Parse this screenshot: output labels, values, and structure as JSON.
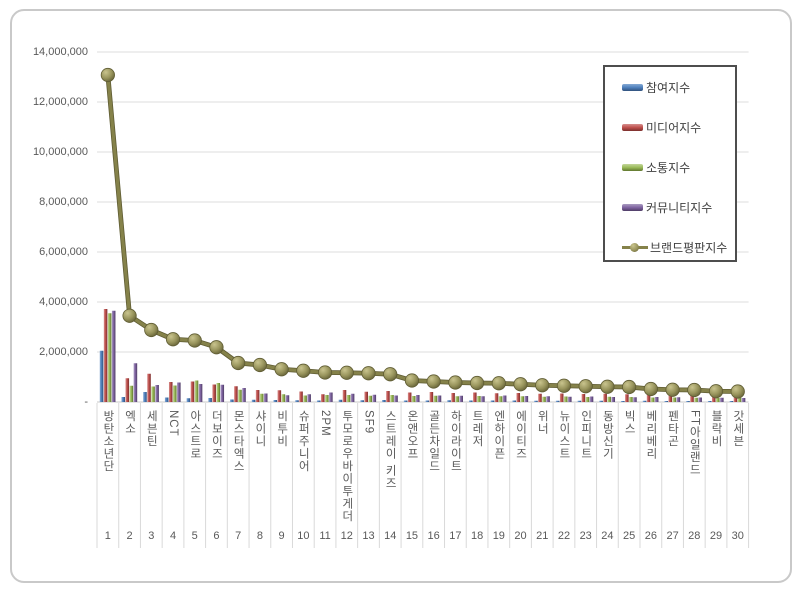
{
  "chart_data": {
    "type": "bar",
    "subtype": "grouped-bars-with-line",
    "title": "",
    "categories": [
      "방탄소년단",
      "엑소",
      "세븐틴",
      "NCT",
      "아스트로",
      "더보이즈",
      "몬스타엑스",
      "샤이니",
      "비투비",
      "슈퍼주니어",
      "2PM",
      "투모로우바이투게더",
      "SF9",
      "스트레이 키즈",
      "온앤오프",
      "골든차일드",
      "하이라이트",
      "트레저",
      "엔하이픈",
      "에이티즈",
      "위너",
      "뉴이스트",
      "인피니트",
      "동방신기",
      "빅스",
      "베리베리",
      "펜타곤",
      "FT아일랜드",
      "블락비",
      "갓세븐"
    ],
    "ranks": [
      1,
      2,
      3,
      4,
      5,
      6,
      7,
      8,
      9,
      10,
      11,
      12,
      13,
      14,
      15,
      16,
      17,
      18,
      19,
      20,
      21,
      22,
      23,
      24,
      25,
      26,
      27,
      28,
      29,
      30
    ],
    "series": [
      {
        "name": "참여지수",
        "type": "bar",
        "color": "#4F81BD",
        "light": "#85a9d4",
        "dark": "#31517c",
        "values": [
          2050000,
          200000,
          400000,
          180000,
          150000,
          160000,
          100000,
          90000,
          80000,
          70000,
          60000,
          90000,
          70000,
          80000,
          60000,
          60000,
          70000,
          60000,
          60000,
          60000,
          50000,
          50000,
          50000,
          50000,
          40000,
          50000,
          40000,
          40000,
          40000,
          40000
        ]
      },
      {
        "name": "미디어지수",
        "type": "bar",
        "color": "#C0504D",
        "light": "#d58f8d",
        "dark": "#7a2f2d",
        "values": [
          3720000,
          950000,
          1130000,
          800000,
          820000,
          700000,
          630000,
          480000,
          470000,
          420000,
          310000,
          480000,
          410000,
          440000,
          380000,
          400000,
          360000,
          380000,
          350000,
          360000,
          330000,
          340000,
          320000,
          330000,
          310000,
          290000,
          280000,
          290000,
          260000,
          270000
        ]
      },
      {
        "name": "소통지수",
        "type": "bar",
        "color": "#9BBB59",
        "light": "#c3d69b",
        "dark": "#60762f",
        "values": [
          3550000,
          650000,
          620000,
          660000,
          860000,
          760000,
          490000,
          330000,
          310000,
          260000,
          280000,
          280000,
          250000,
          280000,
          240000,
          250000,
          230000,
          240000,
          230000,
          230000,
          210000,
          220000,
          200000,
          210000,
          200000,
          180000,
          180000,
          170000,
          160000,
          170000
        ]
      },
      {
        "name": "커뮤니티지수",
        "type": "bar",
        "color": "#8064A2",
        "light": "#a99bc0",
        "dark": "#4e3c65",
        "values": [
          3650000,
          1550000,
          680000,
          780000,
          720000,
          690000,
          560000,
          340000,
          270000,
          310000,
          380000,
          330000,
          290000,
          260000,
          280000,
          260000,
          250000,
          230000,
          260000,
          240000,
          230000,
          210000,
          220000,
          200000,
          190000,
          200000,
          190000,
          180000,
          170000,
          160000
        ]
      },
      {
        "name": "브랜드평판지수",
        "type": "line",
        "color": "#85824A",
        "light": "#c9c48e",
        "dark": "#5f5c33",
        "values": [
          13080000,
          3450000,
          2880000,
          2510000,
          2460000,
          2190000,
          1560000,
          1480000,
          1310000,
          1250000,
          1180000,
          1170000,
          1150000,
          1110000,
          860000,
          820000,
          780000,
          760000,
          750000,
          710000,
          670000,
          650000,
          630000,
          610000,
          600000,
          520000,
          490000,
          480000,
          430000,
          420000
        ]
      }
    ],
    "y_axis": {
      "min": 0,
      "max": 14000000,
      "tick_interval": 2000000,
      "tick_labels": [
        "14,000,000",
        "12,000,000",
        "10,000,000",
        "8,000,000",
        "6,000,000",
        "4,000,000",
        "2,000,000",
        "-"
      ]
    },
    "legend_position": "top-right",
    "grid": true
  }
}
